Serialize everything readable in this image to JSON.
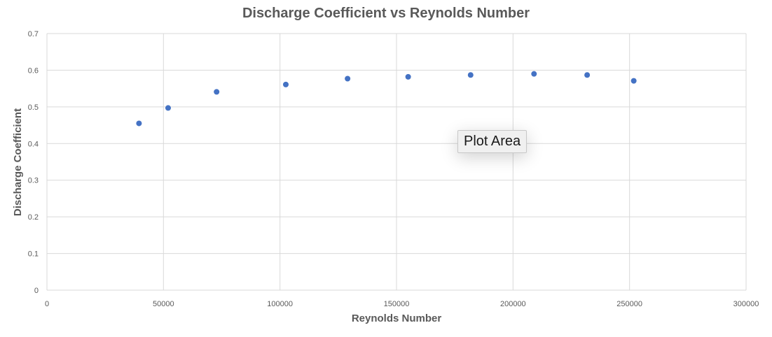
{
  "chart_data": {
    "type": "scatter",
    "title": "Discharge Coefficient vs Reynolds Number",
    "xlabel": "Reynolds Number",
    "ylabel": "Discharge Coefficient",
    "xlim": [
      0,
      300000
    ],
    "ylim": [
      0,
      0.7
    ],
    "xticks": [
      0,
      50000,
      100000,
      150000,
      200000,
      250000,
      300000
    ],
    "yticks": [
      0,
      0.1,
      0.2,
      0.3,
      0.4,
      0.5,
      0.6,
      0.7
    ],
    "xtick_labels": [
      "0",
      "50000",
      "100000",
      "150000",
      "200000",
      "250000",
      "300000"
    ],
    "ytick_labels": [
      "0",
      "0.1",
      "0.2",
      "0.3",
      "0.4",
      "0.5",
      "0.6",
      "0.7"
    ],
    "grid": true,
    "series": [
      {
        "color": "#4472c4",
        "points": [
          {
            "x": 39500,
            "y": 0.455
          },
          {
            "x": 52000,
            "y": 0.497
          },
          {
            "x": 72800,
            "y": 0.541
          },
          {
            "x": 102500,
            "y": 0.561
          },
          {
            "x": 129000,
            "y": 0.577
          },
          {
            "x": 155000,
            "y": 0.582
          },
          {
            "x": 181800,
            "y": 0.587
          },
          {
            "x": 209000,
            "y": 0.59
          },
          {
            "x": 231800,
            "y": 0.587
          },
          {
            "x": 251800,
            "y": 0.571
          }
        ]
      }
    ]
  },
  "tooltip": {
    "text": "Plot Area"
  },
  "colors": {
    "gridline": "#d9d9d9",
    "text": "#595959",
    "marker": "#4472c4"
  }
}
